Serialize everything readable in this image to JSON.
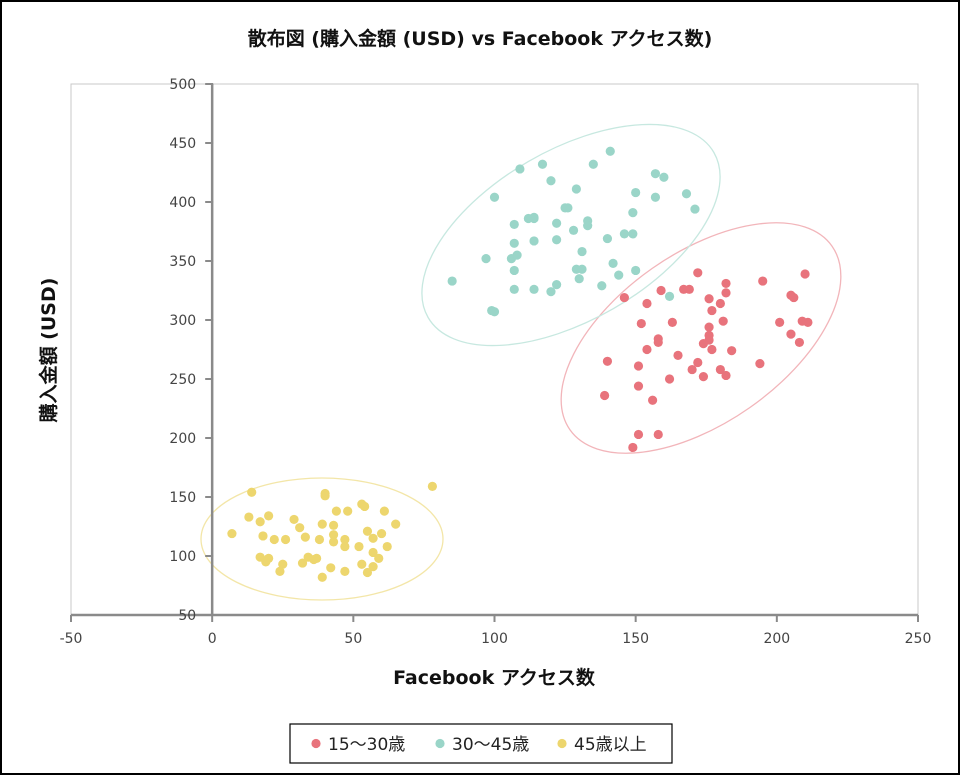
{
  "chart_data": {
    "type": "scatter",
    "title": "散布図 (購入金額 (USD) vs Facebook アクセス数)",
    "xlabel": "Facebook アクセス数",
    "ylabel": "購入金額 (USD)",
    "xlim": [
      -50,
      250
    ],
    "ylim": [
      50,
      500
    ],
    "xticks": [
      "-50",
      "0",
      "50",
      "100",
      "150",
      "200",
      "250"
    ],
    "yticks": [
      "50",
      "100",
      "150",
      "200",
      "250",
      "300",
      "350",
      "400",
      "450",
      "500"
    ],
    "grid": false,
    "legend_position": "bottom",
    "series": [
      {
        "name": "15〜30歳",
        "color": "#E8737C",
        "ellipse_color": "#F2B5BA",
        "points": [
          [
            146,
            319
          ],
          [
            159,
            325
          ],
          [
            172,
            340
          ],
          [
            167,
            326
          ],
          [
            169,
            326
          ],
          [
            182,
            331
          ],
          [
            182,
            323
          ],
          [
            195,
            333
          ],
          [
            210,
            339
          ],
          [
            154,
            314
          ],
          [
            176,
            318
          ],
          [
            180,
            314
          ],
          [
            177,
            308
          ],
          [
            163,
            298
          ],
          [
            181,
            299
          ],
          [
            201,
            298
          ],
          [
            152,
            297
          ],
          [
            176,
            294
          ],
          [
            176,
            287
          ],
          [
            176,
            283
          ],
          [
            158,
            284
          ],
          [
            158,
            281
          ],
          [
            205,
            321
          ],
          [
            206,
            319
          ],
          [
            211,
            298
          ],
          [
            209,
            299
          ],
          [
            205,
            288
          ],
          [
            208,
            281
          ],
          [
            154,
            275
          ],
          [
            174,
            280
          ],
          [
            177,
            275
          ],
          [
            184,
            274
          ],
          [
            140,
            265
          ],
          [
            151,
            261
          ],
          [
            165,
            270
          ],
          [
            172,
            264
          ],
          [
            194,
            263
          ],
          [
            170,
            258
          ],
          [
            180,
            258
          ],
          [
            162,
            250
          ],
          [
            174,
            252
          ],
          [
            182,
            253
          ],
          [
            151,
            244
          ],
          [
            139,
            236
          ],
          [
            156,
            232
          ],
          [
            151,
            203
          ],
          [
            158,
            203
          ],
          [
            149,
            192
          ]
        ]
      },
      {
        "name": "30〜45歳",
        "color": "#9AD5C8",
        "ellipse_color": "#C7E8E0",
        "points": [
          [
            85,
            333
          ],
          [
            100,
            404
          ],
          [
            99,
            308
          ],
          [
            100,
            307
          ],
          [
            109,
            428
          ],
          [
            117,
            432
          ],
          [
            120,
            418
          ],
          [
            141,
            443
          ],
          [
            135,
            432
          ],
          [
            129,
            411
          ],
          [
            150,
            408
          ],
          [
            157,
            424
          ],
          [
            160,
            421
          ],
          [
            157,
            404
          ],
          [
            168,
            407
          ],
          [
            171,
            394
          ],
          [
            149,
            391
          ],
          [
            125,
            395
          ],
          [
            126,
            395
          ],
          [
            112,
            386
          ],
          [
            114,
            387
          ],
          [
            114,
            386
          ],
          [
            107,
            381
          ],
          [
            122,
            382
          ],
          [
            133,
            384
          ],
          [
            133,
            380
          ],
          [
            128,
            376
          ],
          [
            107,
            365
          ],
          [
            114,
            367
          ],
          [
            122,
            368
          ],
          [
            140,
            369
          ],
          [
            146,
            373
          ],
          [
            149,
            373
          ],
          [
            131,
            358
          ],
          [
            106,
            352
          ],
          [
            108,
            355
          ],
          [
            97,
            352
          ],
          [
            142,
            348
          ],
          [
            129,
            343
          ],
          [
            131,
            343
          ],
          [
            107,
            342
          ],
          [
            130,
            335
          ],
          [
            144,
            338
          ],
          [
            150,
            342
          ],
          [
            107,
            326
          ],
          [
            114,
            326
          ],
          [
            120,
            324
          ],
          [
            122,
            330
          ],
          [
            138,
            329
          ],
          [
            162,
            320
          ]
        ]
      },
      {
        "name": "45歳以上",
        "color": "#EDD66E",
        "ellipse_color": "#F3E6A8",
        "points": [
          [
            14,
            154
          ],
          [
            40,
            153
          ],
          [
            40,
            151
          ],
          [
            78,
            159
          ],
          [
            13,
            133
          ],
          [
            17,
            129
          ],
          [
            20,
            134
          ],
          [
            29,
            131
          ],
          [
            31,
            124
          ],
          [
            39,
            127
          ],
          [
            43,
            126
          ],
          [
            44,
            138
          ],
          [
            48,
            138
          ],
          [
            53,
            144
          ],
          [
            54,
            142
          ],
          [
            61,
            138
          ],
          [
            65,
            127
          ],
          [
            7,
            119
          ],
          [
            18,
            117
          ],
          [
            22,
            114
          ],
          [
            26,
            114
          ],
          [
            33,
            116
          ],
          [
            38,
            114
          ],
          [
            43,
            118
          ],
          [
            43,
            112
          ],
          [
            47,
            114
          ],
          [
            47,
            108
          ],
          [
            52,
            108
          ],
          [
            55,
            121
          ],
          [
            57,
            115
          ],
          [
            60,
            119
          ],
          [
            62,
            108
          ],
          [
            57,
            103
          ],
          [
            59,
            98
          ],
          [
            17,
            99
          ],
          [
            20,
            98
          ],
          [
            19,
            95
          ],
          [
            25,
            93
          ],
          [
            24,
            87
          ],
          [
            32,
            94
          ],
          [
            34,
            99
          ],
          [
            36,
            97
          ],
          [
            37,
            98
          ],
          [
            42,
            90
          ],
          [
            39,
            82
          ],
          [
            47,
            87
          ],
          [
            53,
            93
          ],
          [
            57,
            91
          ],
          [
            55,
            86
          ]
        ]
      }
    ]
  }
}
